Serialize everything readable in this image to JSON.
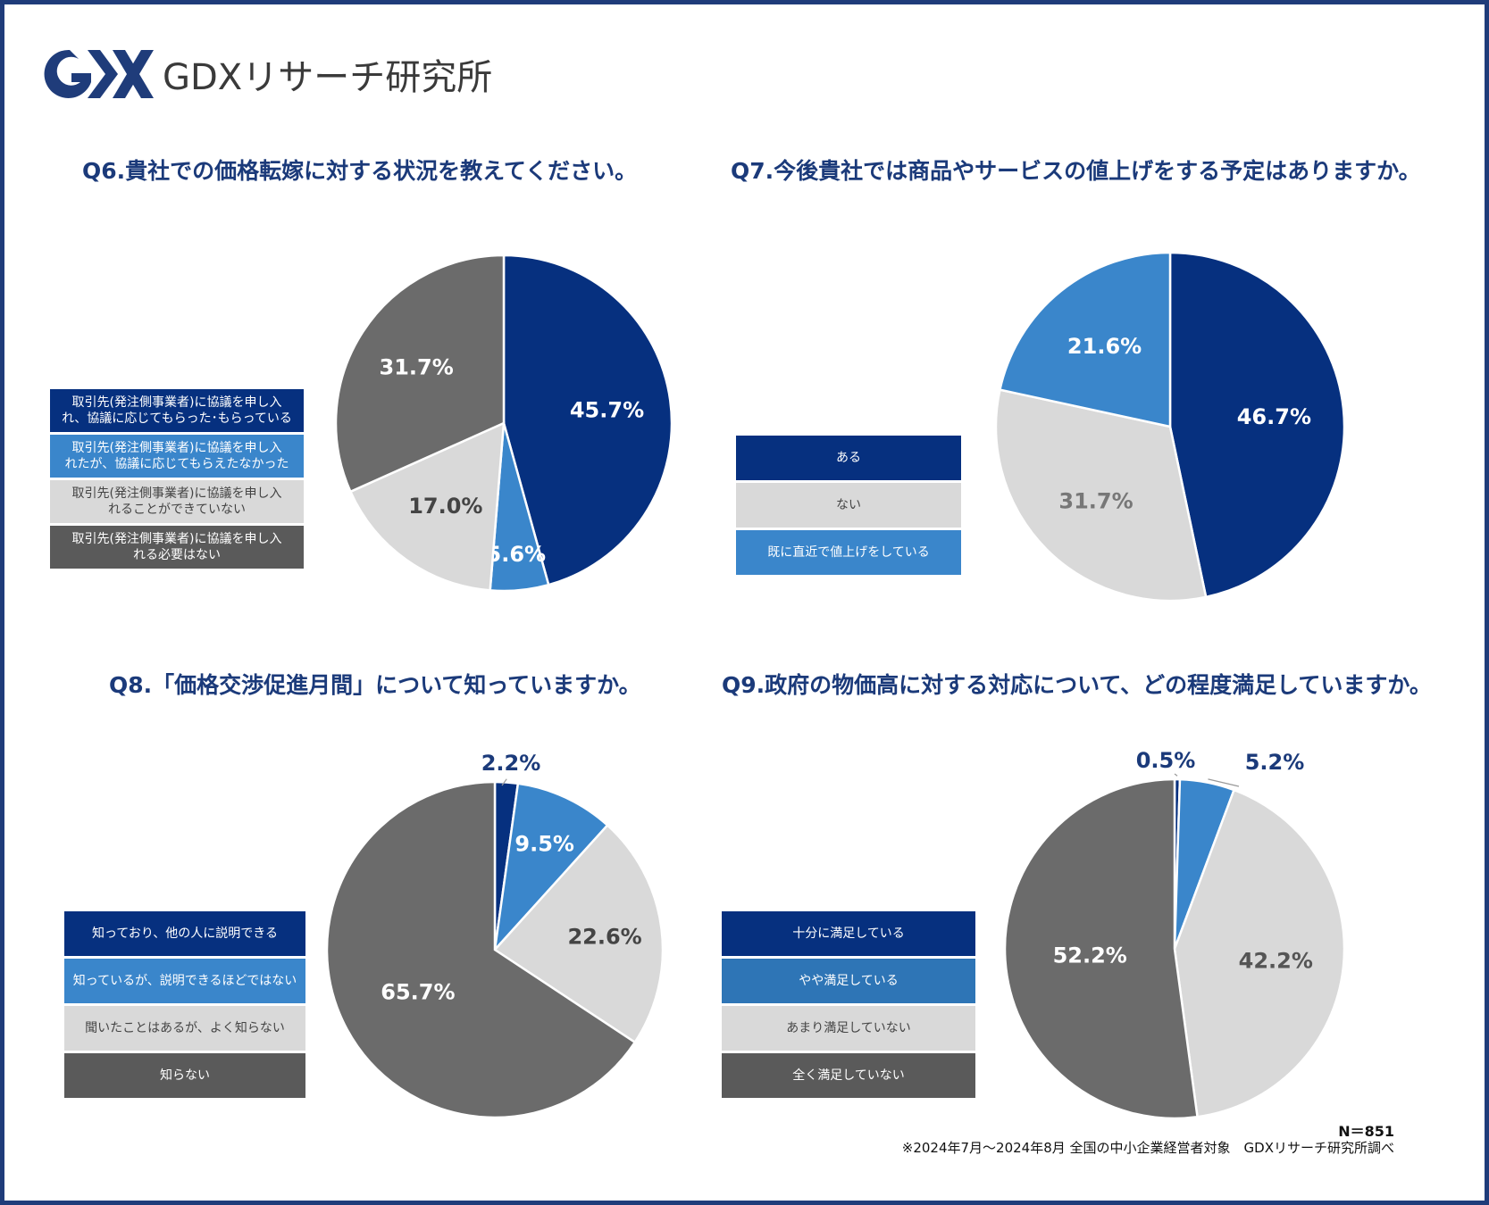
{
  "brand": {
    "logo_text": "GDXリサーチ研究所",
    "colors": {
      "navy": "#06307f",
      "blue": "#3a86cb",
      "light_gray": "#d9d9d9",
      "dark_gray": "#6b6b6b",
      "legend_dark_gray": "#5a5a5a",
      "title": "#1b3a7a"
    }
  },
  "footer": {
    "n": "N＝851",
    "note": "※2024年7月～2024年8月 全国の中小企業経営者対象　GDXリサーチ研究所調べ"
  },
  "chart_data": [
    {
      "id": "q6",
      "type": "pie",
      "title": "Q6.貴社での価格転嫁に対する状況を教えてください。",
      "categories": [
        "取引先(発注側事業者)に協議を申し入れ、協議に応じてもらった･もらっている",
        "取引先(発注側事業者)に協議を申し入れたが、協議に応じてもらえたなかった",
        "取引先(発注側事業者)に協議を申し入れることができていない",
        "取引先(発注側事業者)に協議を申し入れる必要はない"
      ],
      "legend_labels": [
        [
          "取引先(発注側事業者)に協議を申し入",
          "れ、協議に応じてもらった･もらっている"
        ],
        [
          "取引先(発注側事業者)に協議を申し入",
          "れたが、協議に応じてもらえたなかった"
        ],
        [
          "取引先(発注側事業者)に協議を申し入",
          "れることができていない"
        ],
        [
          "取引先(発注側事業者)に協議を申し入",
          "れる必要はない"
        ]
      ],
      "values": [
        45.7,
        5.6,
        17.0,
        31.7
      ],
      "data_labels": [
        "45.7%",
        "5.6%",
        "17.0%",
        "31.7%"
      ],
      "colors": [
        "#06307f",
        "#3a86cb",
        "#d9d9d9",
        "#6b6b6b"
      ],
      "legend_colors": [
        "#06307f",
        "#3a86cb",
        "#d9d9d9",
        "#5a5a5a"
      ]
    },
    {
      "id": "q7",
      "type": "pie",
      "title": "Q7.今後貴社では商品やサービスの値上げをする予定はありますか。",
      "categories": [
        "ある",
        "ない",
        "既に直近で値上げをしている"
      ],
      "legend_labels": [
        [
          "ある"
        ],
        [
          "ない"
        ],
        [
          "既に直近で値上げをしている"
        ]
      ],
      "values": [
        46.7,
        31.7,
        21.6
      ],
      "data_labels": [
        "46.7%",
        "31.7%",
        "21.6%"
      ],
      "colors": [
        "#06307f",
        "#d9d9d9",
        "#3a86cb"
      ],
      "legend_colors": [
        "#06307f",
        "#d9d9d9",
        "#3a86cb"
      ]
    },
    {
      "id": "q8",
      "type": "pie",
      "title": "Q8.「価格交渉促進月間」について知っていますか。",
      "categories": [
        "知っており、他の人に説明できる",
        "知っているが、説明できるほどではない",
        "聞いたことはあるが、よく知らない",
        "知らない"
      ],
      "legend_labels": [
        [
          "知っており、他の人に説明できる"
        ],
        [
          "知っているが、説明できるほどではない"
        ],
        [
          "聞いたことはあるが、よく知らない"
        ],
        [
          "知らない"
        ]
      ],
      "values": [
        2.2,
        9.5,
        22.6,
        65.7
      ],
      "data_labels": [
        "2.2%",
        "9.5%",
        "22.6%",
        "65.7%"
      ],
      "colors": [
        "#06307f",
        "#3a86cb",
        "#d9d9d9",
        "#6b6b6b"
      ],
      "legend_colors": [
        "#06307f",
        "#3a86cb",
        "#d9d9d9",
        "#5a5a5a"
      ]
    },
    {
      "id": "q9",
      "type": "pie",
      "title": "Q9.政府の物価高に対する対応について、どの程度満足していますか。",
      "categories": [
        "十分に満足している",
        "やや満足している",
        "あまり満足していない",
        "全く満足していない"
      ],
      "legend_labels": [
        [
          "十分に満足している"
        ],
        [
          "やや満足している"
        ],
        [
          "あまり満足していない"
        ],
        [
          "全く満足していない"
        ]
      ],
      "values": [
        0.5,
        5.2,
        42.2,
        52.2
      ],
      "data_labels": [
        "0.5%",
        "5.2%",
        "42.2%",
        "52.2%"
      ],
      "colors": [
        "#06307f",
        "#3a86cb",
        "#d9d9d9",
        "#6b6b6b"
      ],
      "legend_colors": [
        "#06307f",
        "#2e75b6",
        "#d9d9d9",
        "#5a5a5a"
      ]
    }
  ]
}
